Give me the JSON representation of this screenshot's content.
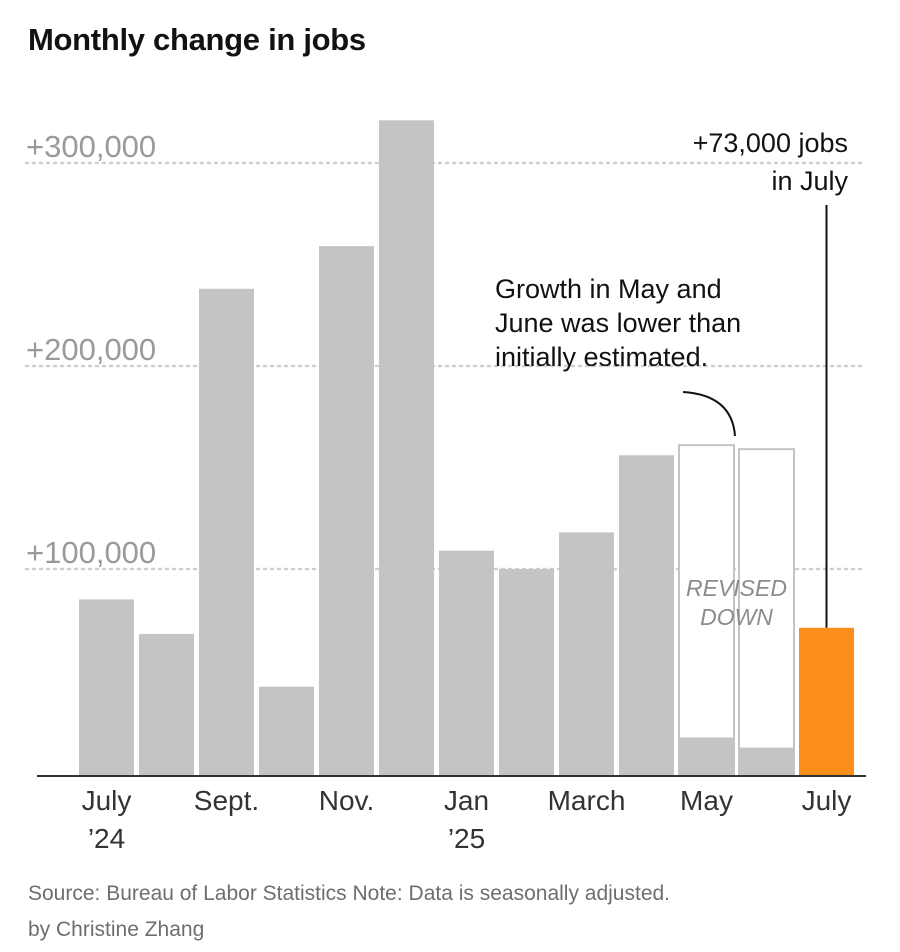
{
  "title": "Monthly change in jobs",
  "chart_data": {
    "type": "bar",
    "title": "Monthly change in jobs",
    "xlabel": "",
    "ylabel": "",
    "ylim": [
      0,
      320000
    ],
    "yticks": [
      100000,
      200000,
      300000
    ],
    "ytick_labels": [
      "+100,000",
      "+200,000",
      "+300,000"
    ],
    "grid": true,
    "categories": [
      "Jul 2024",
      "Aug 2024",
      "Sep 2024",
      "Oct 2024",
      "Nov 2024",
      "Dec 2024",
      "Jan 2025",
      "Feb 2025",
      "Mar 2025",
      "Apr 2025",
      "May 2025",
      "Jun 2025",
      "Jul 2025"
    ],
    "x_tick_labels": [
      {
        "index": 0,
        "lines": [
          "July",
          "’24"
        ]
      },
      {
        "index": 2,
        "lines": [
          "Sept."
        ]
      },
      {
        "index": 4,
        "lines": [
          "Nov."
        ]
      },
      {
        "index": 6,
        "lines": [
          "Jan",
          "’25"
        ]
      },
      {
        "index": 8,
        "lines": [
          "March"
        ]
      },
      {
        "index": 10,
        "lines": [
          "May"
        ]
      },
      {
        "index": 12,
        "lines": [
          "July"
        ]
      }
    ],
    "series": [
      {
        "values": [
          87000,
          70000,
          240000,
          44000,
          261000,
          323000,
          111000,
          102000,
          120000,
          158000,
          19000,
          14000,
          73000
        ]
      },
      {
        "values": [
          null,
          null,
          null,
          null,
          null,
          null,
          null,
          null,
          null,
          null,
          163000,
          161000,
          null
        ]
      }
    ],
    "colors": {
      "bar": "#c4c4c4",
      "highlight": "#fb8e1b",
      "revised_outline": "#c4c4c4",
      "grid": "#cfcfcf",
      "axis": "#333333"
    },
    "highlight_index": 12,
    "annotations": {
      "july": [
        "+73,000 jobs",
        "in July"
      ],
      "revision": [
        "Growth in May and",
        "June was lower than",
        "initially estimated."
      ],
      "revised_label": [
        "REVISED",
        "DOWN"
      ]
    }
  },
  "footer": {
    "source": "Source: Bureau of Labor Statistics Note: Data is seasonally adjusted.",
    "byline": "by Christine Zhang"
  }
}
